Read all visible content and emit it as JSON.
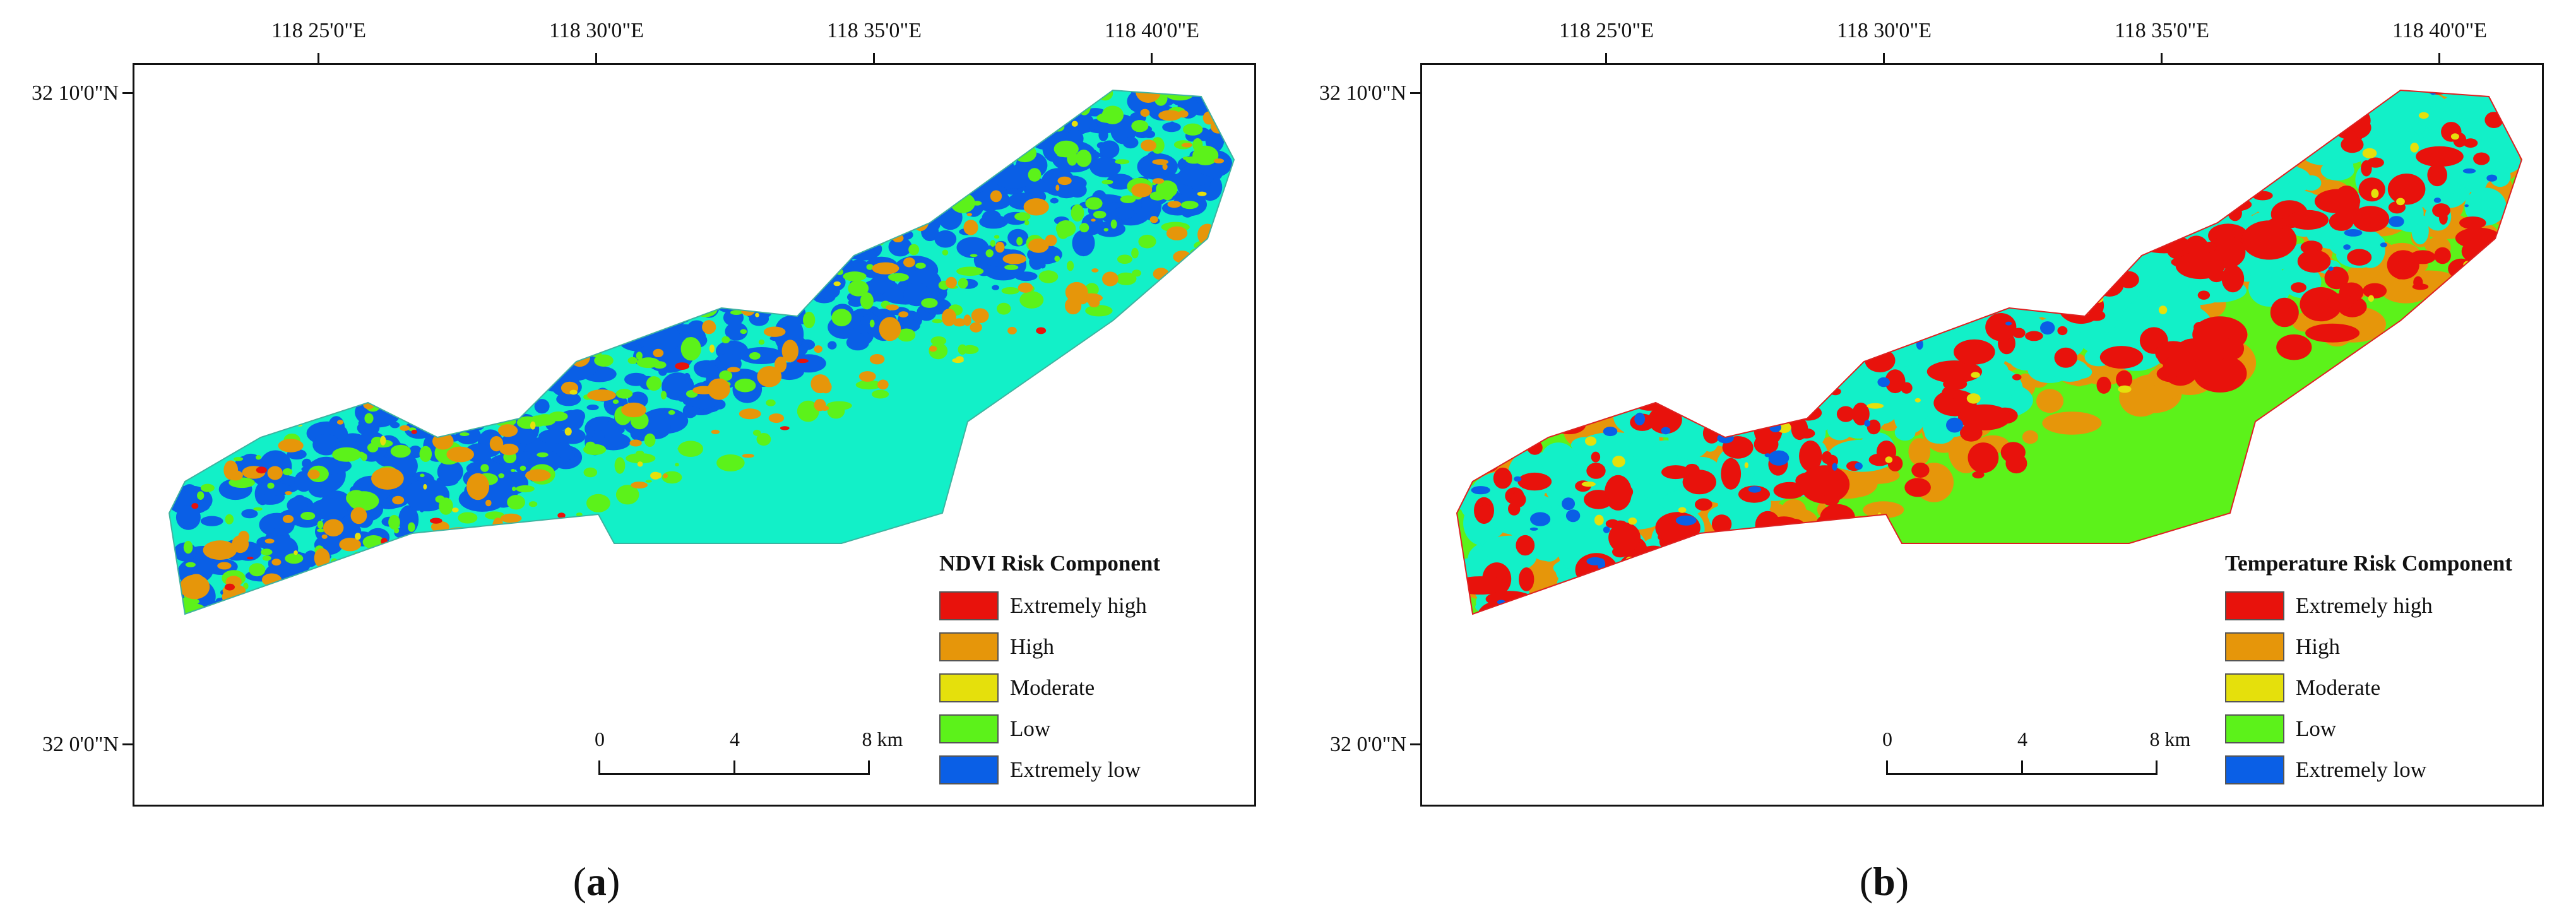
{
  "colors": {
    "extremely_high": "#e8120c",
    "high": "#e6960a",
    "moderate": "#e5e00c",
    "low": "#5cf21a",
    "extremely_low": "#0a5fe6",
    "cyan": "#12f0c8"
  },
  "axes": {
    "lon_labels": [
      "118 25'0\"E",
      "118 30'0\"E",
      "118 35'0\"E",
      "118 40'0\"E"
    ],
    "lat_labels": [
      "32 10'0\"N",
      "32 0'0\"N"
    ]
  },
  "scale_bar": {
    "labels": [
      "0",
      "4",
      "8 km"
    ]
  },
  "legend_categories": [
    "Extremely high",
    "High",
    "Moderate",
    "Low",
    "Extremely low"
  ],
  "panels": [
    {
      "caption_letter": "a",
      "legend_title": "NDVI Risk Component"
    },
    {
      "caption_letter": "b",
      "legend_title": "Temperature Risk Component"
    }
  ]
}
